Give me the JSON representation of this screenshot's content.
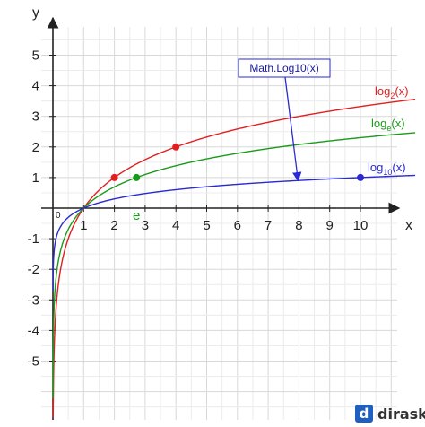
{
  "chart_data": {
    "type": "line",
    "xlabel": "x",
    "ylabel": "y",
    "xlim": [
      -0.1,
      10.8
    ],
    "ylim": [
      -6.2,
      6.0
    ],
    "x_ticks": [
      "1",
      "2",
      "3",
      "4",
      "5",
      "6",
      "7",
      "8",
      "9",
      "10"
    ],
    "y_ticks": [
      "5",
      "4",
      "3",
      "2",
      "1",
      "-1",
      "-2",
      "-3",
      "-4",
      "-5"
    ],
    "origin_label": "0",
    "grid": true,
    "series": [
      {
        "name": "log2(x)",
        "label_base": "log",
        "label_sub": "2",
        "label_tail": "(x)",
        "base": 2,
        "color": "#e02020",
        "marked_points": [
          {
            "x": 2,
            "y": 1
          },
          {
            "x": 4,
            "y": 2
          }
        ]
      },
      {
        "name": "loge(x)",
        "label_base": "log",
        "label_sub": "e",
        "label_tail": "(x)",
        "base": 2.718281828,
        "color": "#1a9a1a",
        "marked_points": [
          {
            "x": 2.718,
            "y": 1
          }
        ]
      },
      {
        "name": "log10(x)",
        "label_base": "log",
        "label_sub": "10",
        "label_tail": "(x)",
        "base": 10,
        "color": "#2a2ad0",
        "marked_points": [
          {
            "x": 10,
            "y": 1
          }
        ]
      }
    ],
    "annotations": [
      {
        "text": "e",
        "color": "#1a9a1a",
        "x": 2.718
      },
      {
        "text": "Math.Log10(x)",
        "color": "#1a1aa0",
        "arrow_to": {
          "x": 8.0,
          "y": 0.9
        }
      }
    ]
  },
  "branding": {
    "mark": "d",
    "name": "dirask"
  }
}
